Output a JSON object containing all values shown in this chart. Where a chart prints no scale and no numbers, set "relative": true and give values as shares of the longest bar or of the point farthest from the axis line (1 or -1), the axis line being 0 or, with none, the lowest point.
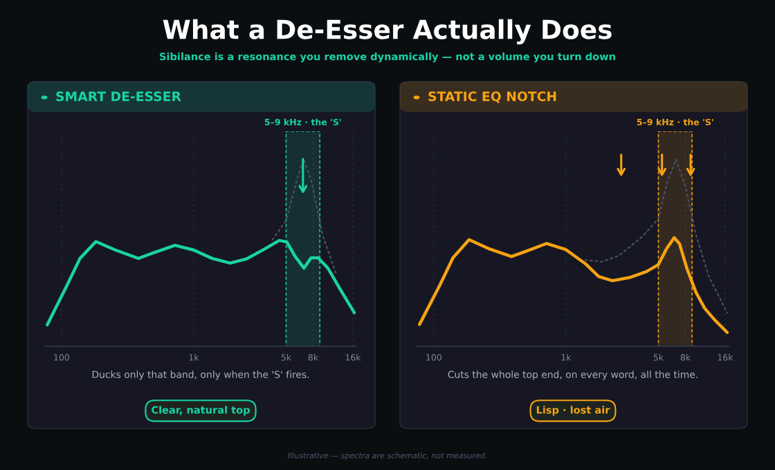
{
  "chart_data": [
    {
      "type": "other",
      "title": "What a De-Esser Actually Does",
      "subtitle": "Sibilance is a resonance you remove dynamically — not a volume you turn down",
      "annotations": [
        "Illustrative — spectra are schematic, not measured."
      ]
    },
    {
      "type": "line",
      "title": "SMART DE-ESSER",
      "relative": true,
      "log": "x",
      "grid": "x",
      "tick_labels": "x",
      "xlim": [
        75,
        17000
      ],
      "xticks": [
        100,
        {
          "value": 1000,
          "label": "1k"
        },
        {
          "value": 5000,
          "label": "5k"
        },
        {
          "value": 8000,
          "label": "8k"
        },
        {
          "value": 16000,
          "label": "16k"
        }
      ],
      "bands": [
        {
          "axis": "x",
          "from": 5000,
          "to": 9000,
          "label": "5–9 kHz · the 'S'",
          "color": "#19d3a6"
        }
      ],
      "series": [
        {
          "color": "#4b5060",
          "line_style": "dotted",
          "x": [
            3940,
            5000,
            6030,
            6770,
            7730,
            9500,
            11860
          ],
          "values": [
            0.57,
            0.673,
            0.89,
            1.0,
            0.89,
            0.588,
            0.394
          ]
        },
        {
          "color": "#19d3a6",
          "line_style": "solid",
          "x": [
            78,
            109,
            138,
            182,
            256,
            382,
            495,
            723,
            1000,
            1380,
            1890,
            2500,
            3430,
            4440,
            5060,
            5870,
            6820,
            7730,
            8730,
            10350,
            12700,
            16400
          ],
          "values": [
            0.115,
            0.32,
            0.47,
            0.56,
            0.515,
            0.47,
            0.5,
            0.54,
            0.515,
            0.47,
            0.445,
            0.467,
            0.52,
            0.566,
            0.558,
            0.479,
            0.418,
            0.473,
            0.473,
            0.418,
            0.31,
            0.18
          ]
        }
      ],
      "annotations": [
        "Ducks only that band, only when the 'S' fires.",
        "Clear, natural top"
      ]
    },
    {
      "type": "line",
      "title": "STATIC EQ NOTCH",
      "relative": true,
      "log": "x",
      "grid": "x",
      "tick_labels": "x",
      "xlim": [
        75,
        17000
      ],
      "xticks": [
        100,
        {
          "value": 1000,
          "label": "1k"
        },
        {
          "value": 5000,
          "label": "5k"
        },
        {
          "value": 8000,
          "label": "8k"
        },
        {
          "value": 16000,
          "label": "16k"
        }
      ],
      "bands": [
        {
          "axis": "x",
          "from": 5000,
          "to": 9000,
          "label": "5–9 kHz · the 'S'",
          "color": "#f5a314"
        }
      ],
      "series": [
        {
          "color": "#4b5060",
          "line_style": "dotted",
          "x": [
            1395,
            1878,
            2530,
            3760,
            5000,
            5780,
            6790,
            8000,
            9620,
            12000,
            16600
          ],
          "values": [
            0.462,
            0.452,
            0.486,
            0.585,
            0.683,
            0.868,
            1.0,
            0.856,
            0.597,
            0.376,
            0.179
          ]
        },
        {
          "color": "#f5a314",
          "line_style": "solid",
          "x": [
            78,
            111,
            140,
            185,
            259,
            387,
            502,
            715,
            1000,
            1395,
            1770,
            2245,
            3080,
            4070,
            5000,
            5780,
            6590,
            7230,
            8250,
            9620,
            11210,
            13300,
            16600
          ],
          "values": [
            0.117,
            0.326,
            0.474,
            0.57,
            0.523,
            0.48,
            0.509,
            0.55,
            0.517,
            0.443,
            0.373,
            0.351,
            0.369,
            0.4,
            0.437,
            0.523,
            0.581,
            0.548,
            0.413,
            0.289,
            0.203,
            0.142,
            0.074
          ]
        }
      ],
      "annotations": [
        "Cuts the whole top end, on every word, all the time.",
        "Lisp · lost air"
      ]
    }
  ]
}
